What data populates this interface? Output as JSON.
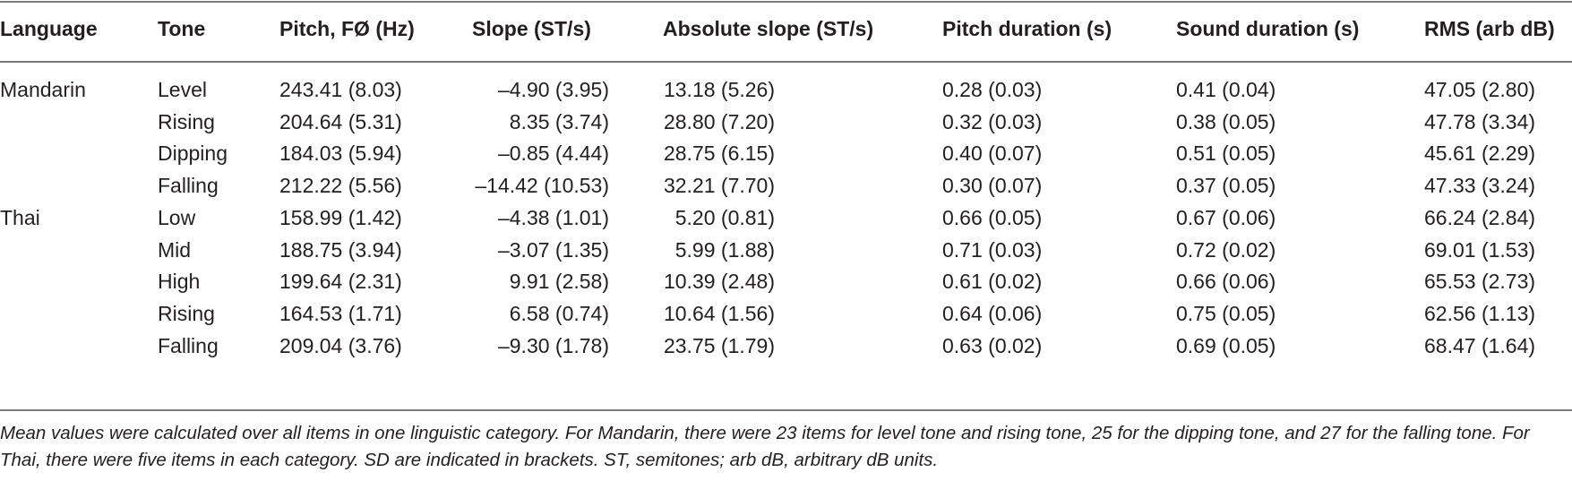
{
  "table": {
    "headers": [
      "Language",
      "Tone",
      "Pitch, FØ (Hz)",
      "Slope (ST/s)",
      "Absolute slope (ST/s)",
      "Pitch duration (s)",
      "Sound duration (s)",
      "RMS (arb dB)"
    ],
    "rows": [
      [
        "Mandarin",
        "Level",
        "243.41 (8.03)",
        "–4.90 (3.95)",
        "13.18 (5.26)",
        "0.28 (0.03)",
        "0.41 (0.04)",
        "47.05 (2.80)"
      ],
      [
        "",
        "Rising",
        "204.64 (5.31)",
        "8.35 (3.74)",
        "28.80 (7.20)",
        "0.32 (0.03)",
        "0.38 (0.05)",
        "47.78 (3.34)"
      ],
      [
        "",
        "Dipping",
        "184.03 (5.94)",
        "–0.85 (4.44)",
        "28.75 (6.15)",
        "0.40 (0.07)",
        "0.51 (0.05)",
        "45.61 (2.29)"
      ],
      [
        "",
        "Falling",
        "212.22 (5.56)",
        "–14.42 (10.53)",
        "32.21 (7.70)",
        "0.30 (0.07)",
        "0.37 (0.05)",
        "47.33 (3.24)"
      ],
      [
        "Thai",
        "Low",
        "158.99 (1.42)",
        "–4.38 (1.01)",
        "5.20 (0.81)",
        "0.66 (0.05)",
        "0.67 (0.06)",
        "66.24 (2.84)"
      ],
      [
        "",
        "Mid",
        "188.75 (3.94)",
        "–3.07 (1.35)",
        "5.99 (1.88)",
        "0.71 (0.03)",
        "0.72 (0.02)",
        "69.01 (1.53)"
      ],
      [
        "",
        "High",
        "199.64 (2.31)",
        "9.91 (2.58)",
        "10.39 (2.48)",
        "0.61 (0.02)",
        "0.66 (0.06)",
        "65.53 (2.73)"
      ],
      [
        "",
        "Rising",
        "164.53 (1.71)",
        "6.58 (0.74)",
        "10.64 (1.56)",
        "0.64 (0.06)",
        "0.75 (0.05)",
        "62.56 (1.13)"
      ],
      [
        "",
        "Falling",
        "209.04 (3.76)",
        "–9.30 (1.78)",
        "23.75 (1.79)",
        "0.63 (0.02)",
        "0.69 (0.05)",
        "68.47 (1.64)"
      ]
    ]
  },
  "caption": "Mean values were calculated over all items in one linguistic category. For Mandarin, there were 23 items for level tone and rising tone, 25 for the dipping tone, and 27 for the falling tone. For Thai, there were five items in each category. SD are indicated in brackets. ST, semitones; arb dB, arbitrary dB units."
}
